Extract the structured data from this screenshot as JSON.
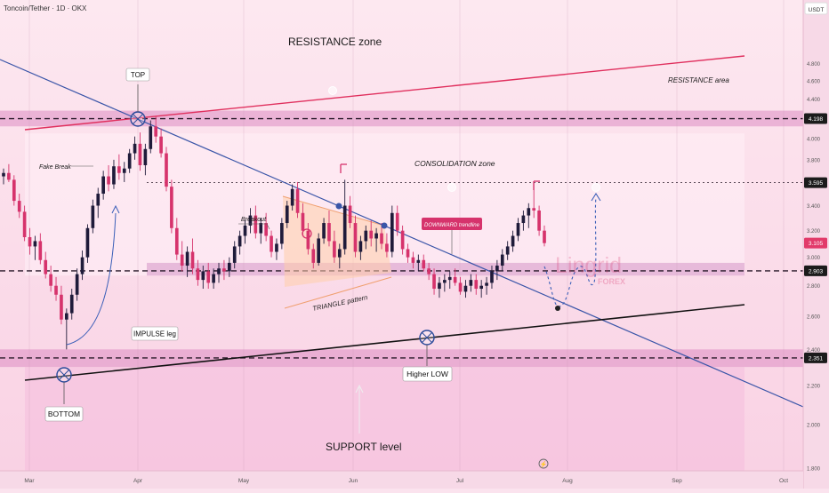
{
  "header": {
    "symbol_title": "Toncoin/Tether · 1D · OKX"
  },
  "chart_data": {
    "type": "candlestick",
    "title": "Toncoin/Tether · 1D · OKX",
    "currency_label": "USDT",
    "y_axis": {
      "log_scale": true,
      "range": [
        1.67,
        5.0
      ],
      "ticks": [
        "4.800",
        "4.600",
        "4.400",
        "4.200",
        "4.000",
        "3.800",
        "3.600",
        "3.400",
        "3.200",
        "3.000",
        "2.800",
        "2.600",
        "2.400",
        "2.200",
        "2.000",
        "1.800"
      ]
    },
    "x_axis": {
      "ticks": [
        "Mar",
        "Apr",
        "May",
        "Jun",
        "Jul",
        "Aug",
        "Sep",
        "Oct"
      ]
    },
    "price_badges": [
      {
        "value": "4.198",
        "color": "#1b1b1b"
      },
      {
        "value": "3.595",
        "color": "#1b1b1b"
      },
      {
        "value": "3.105",
        "color": "#e23a6a"
      },
      {
        "value": "2.903",
        "color": "#1b1b1b"
      },
      {
        "value": "2.351",
        "color": "#1b1b1b"
      }
    ],
    "horizontal_levels": [
      {
        "value": 4.198,
        "style": "dashed"
      },
      {
        "value": 3.595,
        "style": "dotted"
      },
      {
        "value": 2.903,
        "style": "dashed"
      },
      {
        "value": 2.351,
        "style": "dashed"
      }
    ],
    "zones": [
      {
        "name": "resistance-area",
        "from": 4.12,
        "to": 4.28,
        "label": "RESISTANCE area"
      },
      {
        "name": "consolidation",
        "from": 2.87,
        "to": 4.05,
        "label": "CONSOLIDATION zone"
      },
      {
        "name": "support",
        "from": 2.3,
        "to": 2.4,
        "label": ""
      }
    ],
    "annotations": {
      "resistance_zone": "RESISTANCE zone",
      "consolidation_zone": "CONSOLIDATION zone",
      "resistance_area": "RESISTANCE area",
      "fake_break": "Fake Break",
      "breakout": "Breakout",
      "top": "TOP",
      "bottom": "BOTTOM",
      "impulse_leg": "IMPULSE leg",
      "triangle_pattern": "TRIANGLE pattern",
      "downward_trendline": "DOWNWARD trendline",
      "higher_low": "Higher LOW",
      "support_level": "SUPPORT level",
      "watermark_main": "Lingrid",
      "watermark_sub": "FOREX"
    },
    "candles": [
      [
        3.65,
        3.72,
        3.58,
        3.68
      ],
      [
        3.68,
        3.76,
        3.6,
        3.62
      ],
      [
        3.62,
        3.66,
        3.4,
        3.44
      ],
      [
        3.44,
        3.5,
        3.3,
        3.35
      ],
      [
        3.35,
        3.4,
        3.12,
        3.15
      ],
      [
        3.15,
        3.22,
        3.02,
        3.08
      ],
      [
        3.08,
        3.16,
        2.98,
        3.12
      ],
      [
        3.12,
        3.18,
        2.95,
        2.98
      ],
      [
        2.98,
        3.04,
        2.85,
        2.88
      ],
      [
        2.88,
        2.94,
        2.76,
        2.8
      ],
      [
        2.8,
        2.86,
        2.7,
        2.74
      ],
      [
        2.74,
        2.8,
        2.55,
        2.58
      ],
      [
        2.58,
        2.65,
        2.4,
        2.62
      ],
      [
        2.62,
        2.78,
        2.58,
        2.74
      ],
      [
        2.74,
        2.92,
        2.7,
        2.88
      ],
      [
        2.88,
        3.05,
        2.84,
        3.0
      ],
      [
        3.0,
        3.25,
        2.96,
        3.22
      ],
      [
        3.22,
        3.45,
        3.18,
        3.4
      ],
      [
        3.4,
        3.55,
        3.3,
        3.5
      ],
      [
        3.5,
        3.7,
        3.45,
        3.65
      ],
      [
        3.65,
        3.75,
        3.52,
        3.58
      ],
      [
        3.58,
        3.8,
        3.54,
        3.74
      ],
      [
        3.74,
        3.85,
        3.62,
        3.68
      ],
      [
        3.68,
        3.78,
        3.6,
        3.72
      ],
      [
        3.72,
        3.9,
        3.68,
        3.86
      ],
      [
        3.86,
        4.02,
        3.8,
        3.95
      ],
      [
        3.95,
        4.06,
        3.7,
        3.75
      ],
      [
        3.75,
        3.95,
        3.66,
        3.9
      ],
      [
        3.9,
        4.18,
        3.86,
        4.12
      ],
      [
        4.12,
        4.22,
        3.96,
        4.02
      ],
      [
        4.02,
        4.1,
        3.82,
        3.86
      ],
      [
        3.86,
        3.92,
        3.52,
        3.56
      ],
      [
        3.56,
        3.62,
        3.18,
        3.22
      ],
      [
        3.22,
        3.3,
        2.98,
        3.02
      ],
      [
        3.02,
        3.12,
        2.9,
        2.94
      ],
      [
        2.94,
        3.08,
        2.86,
        3.04
      ],
      [
        3.04,
        3.14,
        2.88,
        2.92
      ],
      [
        2.92,
        2.98,
        2.8,
        2.84
      ],
      [
        2.84,
        2.94,
        2.78,
        2.9
      ],
      [
        2.9,
        2.96,
        2.78,
        2.82
      ],
      [
        2.82,
        2.92,
        2.78,
        2.88
      ],
      [
        2.88,
        2.96,
        2.82,
        2.92
      ],
      [
        2.92,
        2.98,
        2.84,
        2.9
      ],
      [
        2.9,
        3.0,
        2.86,
        2.96
      ],
      [
        2.96,
        3.12,
        2.92,
        3.08
      ],
      [
        3.08,
        3.2,
        3.02,
        3.16
      ],
      [
        3.16,
        3.28,
        3.1,
        3.24
      ],
      [
        3.24,
        3.38,
        3.18,
        3.32
      ],
      [
        3.32,
        3.4,
        3.14,
        3.18
      ],
      [
        3.18,
        3.3,
        3.1,
        3.26
      ],
      [
        3.26,
        3.34,
        3.12,
        3.16
      ],
      [
        3.16,
        3.2,
        3.0,
        3.04
      ],
      [
        3.04,
        3.14,
        2.98,
        3.1
      ],
      [
        3.1,
        3.3,
        3.06,
        3.26
      ],
      [
        3.26,
        3.44,
        3.22,
        3.4
      ],
      [
        3.4,
        3.58,
        3.36,
        3.54
      ],
      [
        3.54,
        3.6,
        3.3,
        3.34
      ],
      [
        3.34,
        3.42,
        3.16,
        3.2
      ],
      [
        3.2,
        3.26,
        3.02,
        3.06
      ],
      [
        3.06,
        3.1,
        2.92,
        2.96
      ],
      [
        2.96,
        3.18,
        2.94,
        3.14
      ],
      [
        3.14,
        3.3,
        3.1,
        3.26
      ],
      [
        3.26,
        3.36,
        3.08,
        3.12
      ],
      [
        3.12,
        3.2,
        2.96,
        3.0
      ],
      [
        3.0,
        3.1,
        2.92,
        3.06
      ],
      [
        3.06,
        3.62,
        3.02,
        3.4
      ],
      [
        3.4,
        3.48,
        3.22,
        3.26
      ],
      [
        3.26,
        3.32,
        3.0,
        3.04
      ],
      [
        3.04,
        3.16,
        2.98,
        3.12
      ],
      [
        3.12,
        3.24,
        3.06,
        3.2
      ],
      [
        3.2,
        3.28,
        3.08,
        3.14
      ],
      [
        3.14,
        3.22,
        3.04,
        3.18
      ],
      [
        3.18,
        3.26,
        3.06,
        3.1
      ],
      [
        3.1,
        3.18,
        3.0,
        3.04
      ],
      [
        3.04,
        3.4,
        3.0,
        3.34
      ],
      [
        3.34,
        3.4,
        3.16,
        3.2
      ],
      [
        3.2,
        3.24,
        3.02,
        3.06
      ],
      [
        3.06,
        3.1,
        2.96,
        3.0
      ],
      [
        3.0,
        3.04,
        2.92,
        2.96
      ],
      [
        2.96,
        3.02,
        2.9,
        2.98
      ],
      [
        2.98,
        3.02,
        2.9,
        2.92
      ],
      [
        2.92,
        2.96,
        2.84,
        2.88
      ],
      [
        2.88,
        2.92,
        2.74,
        2.78
      ],
      [
        2.78,
        2.86,
        2.72,
        2.82
      ],
      [
        2.82,
        2.88,
        2.76,
        2.84
      ],
      [
        2.84,
        2.9,
        2.78,
        2.86
      ],
      [
        2.86,
        2.92,
        2.8,
        2.82
      ],
      [
        2.82,
        2.86,
        2.74,
        2.76
      ],
      [
        2.76,
        2.84,
        2.72,
        2.8
      ],
      [
        2.8,
        2.88,
        2.76,
        2.84
      ],
      [
        2.84,
        2.88,
        2.74,
        2.78
      ],
      [
        2.78,
        2.84,
        2.72,
        2.8
      ],
      [
        2.8,
        2.86,
        2.74,
        2.82
      ],
      [
        2.82,
        2.94,
        2.78,
        2.9
      ],
      [
        2.9,
        2.98,
        2.84,
        2.94
      ],
      [
        2.94,
        3.06,
        2.9,
        3.02
      ],
      [
        3.02,
        3.12,
        2.98,
        3.08
      ],
      [
        3.08,
        3.2,
        3.04,
        3.16
      ],
      [
        3.16,
        3.3,
        3.12,
        3.26
      ],
      [
        3.26,
        3.36,
        3.2,
        3.32
      ],
      [
        3.32,
        3.42,
        3.22,
        3.38
      ],
      [
        3.38,
        3.6,
        3.3,
        3.36
      ],
      [
        3.36,
        3.4,
        3.16,
        3.2
      ],
      [
        3.2,
        3.24,
        3.08,
        3.105
      ]
    ]
  }
}
